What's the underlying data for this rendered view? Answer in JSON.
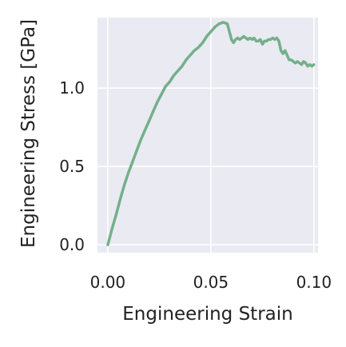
{
  "chart_data": {
    "type": "line",
    "title": "",
    "xlabel": "Engineering Strain",
    "ylabel": "Engineering Stress [GPa]",
    "xlim": [
      -0.005,
      0.102
    ],
    "ylim": [
      -0.05,
      1.45
    ],
    "xticks": [
      0.0,
      0.05,
      0.1
    ],
    "xtick_labels": [
      "0.00",
      "0.05",
      "0.10"
    ],
    "yticks": [
      0.0,
      0.5,
      1.0
    ],
    "ytick_labels": [
      "0.0",
      "0.5",
      "1.0"
    ],
    "grid": true,
    "legend": "none",
    "colors": {
      "background": "#EAEAF2",
      "grid": "#FFFFFF",
      "line": "#74B08A"
    },
    "series": [
      {
        "x": [
          0.0,
          0.002,
          0.004,
          0.006,
          0.008,
          0.01,
          0.012,
          0.014,
          0.016,
          0.018,
          0.02,
          0.022,
          0.024,
          0.026,
          0.028,
          0.03,
          0.032,
          0.034,
          0.036,
          0.038,
          0.04,
          0.042,
          0.044,
          0.046,
          0.048,
          0.05,
          0.052,
          0.054,
          0.056,
          0.058,
          0.059,
          0.06,
          0.061,
          0.062,
          0.063,
          0.064,
          0.065,
          0.066,
          0.067,
          0.068,
          0.069,
          0.07,
          0.071,
          0.072,
          0.073,
          0.074,
          0.075,
          0.076,
          0.077,
          0.078,
          0.079,
          0.08,
          0.081,
          0.082,
          0.083,
          0.084,
          0.085,
          0.086,
          0.087,
          0.088,
          0.089,
          0.09,
          0.091,
          0.092,
          0.093,
          0.094,
          0.095,
          0.096,
          0.097,
          0.098,
          0.099,
          0.1
        ],
        "values": [
          0.0,
          0.1,
          0.19,
          0.29,
          0.38,
          0.46,
          0.53,
          0.6,
          0.67,
          0.73,
          0.79,
          0.85,
          0.91,
          0.96,
          1.01,
          1.04,
          1.08,
          1.11,
          1.14,
          1.18,
          1.21,
          1.24,
          1.26,
          1.29,
          1.33,
          1.36,
          1.39,
          1.41,
          1.42,
          1.41,
          1.36,
          1.31,
          1.29,
          1.31,
          1.32,
          1.31,
          1.32,
          1.33,
          1.32,
          1.31,
          1.32,
          1.31,
          1.32,
          1.3,
          1.3,
          1.31,
          1.28,
          1.3,
          1.3,
          1.31,
          1.31,
          1.32,
          1.31,
          1.32,
          1.3,
          1.24,
          1.22,
          1.24,
          1.21,
          1.18,
          1.18,
          1.17,
          1.16,
          1.17,
          1.16,
          1.15,
          1.17,
          1.16,
          1.14,
          1.15,
          1.14,
          1.15
        ]
      }
    ]
  }
}
